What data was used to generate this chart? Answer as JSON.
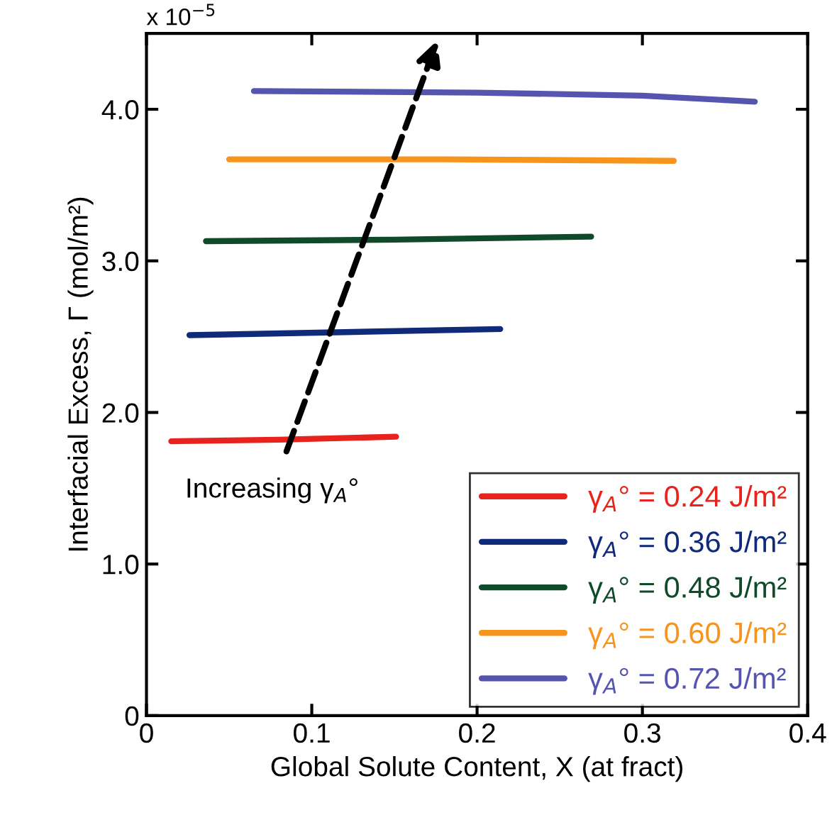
{
  "chart_data": {
    "type": "line",
    "xlabel": "Global Solute Content, X (at fract)",
    "ylabel": "Interfacial Excess, Γ (mol/m²)",
    "annotations": [
      "x 10$^{−5}$",
      "Increasing γ$_{A}$°"
    ],
    "xlim": [
      0,
      0.4
    ],
    "xticks": [
      0,
      0.1,
      0.2,
      0.3,
      0.4
    ],
    "ylim": [
      0,
      4.5
    ],
    "yticks": [
      0,
      {
        "value": 1,
        "label": "1.0"
      },
      {
        "value": 2,
        "label": "2.0"
      },
      {
        "value": 3,
        "label": "3.0"
      },
      {
        "value": 4,
        "label": "4.0"
      }
    ],
    "grid": false,
    "legend": "bottom right",
    "marker": "none",
    "line_style": "solid",
    "series": [
      {
        "name": "γ$_{A}$° = 0.24 J/m²",
        "color": "#e8231e",
        "x": [
          0.015,
          0.08,
          0.151
        ],
        "values": [
          1.81,
          1.82,
          1.84
        ]
      },
      {
        "name": "γ$_{A}$° = 0.36 J/m²",
        "color": "#102a7a",
        "x": [
          0.026,
          0.12,
          0.214
        ],
        "values": [
          2.51,
          2.53,
          2.55
        ]
      },
      {
        "name": "γ$_{A}$° = 0.48 J/m²",
        "color": "#0f4a2a",
        "x": [
          0.036,
          0.15,
          0.269
        ],
        "values": [
          3.13,
          3.14,
          3.16
        ]
      },
      {
        "name": "γ$_{A}$° = 0.60 J/m²",
        "color": "#f7941d",
        "x": [
          0.05,
          0.18,
          0.319
        ],
        "values": [
          3.67,
          3.67,
          3.66
        ]
      },
      {
        "name": "γ$_{A}$° = 0.72 J/m²",
        "color": "#5555b0",
        "x": [
          0.065,
          0.2,
          0.3,
          0.368
        ],
        "values": [
          4.12,
          4.11,
          4.09,
          4.05
        ]
      }
    ]
  }
}
